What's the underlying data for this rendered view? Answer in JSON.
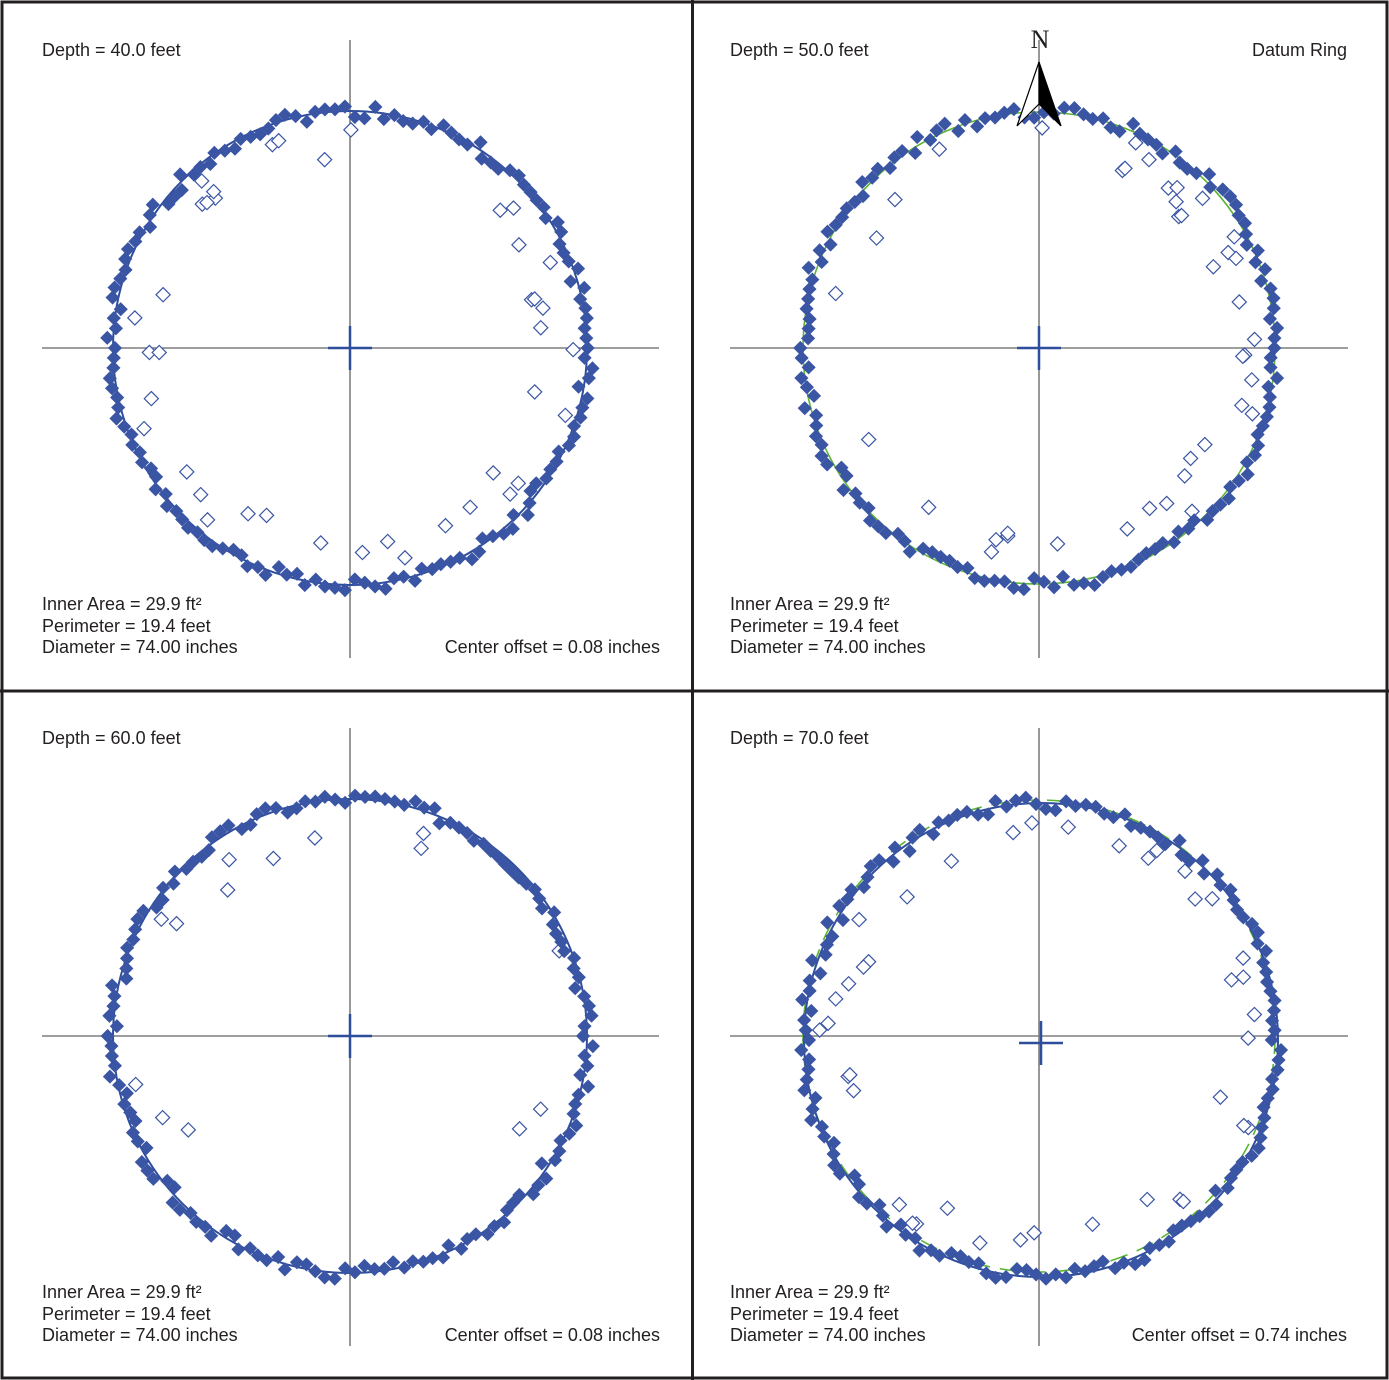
{
  "colors": {
    "fit_circle": "#2e4d9c",
    "datum_ring": "#5bb531",
    "filled_marker": "#3a55a4",
    "open_marker": "#3a55a4",
    "axis": "#7f7f7f",
    "frame": "#231f20",
    "north_arrow": "#000000"
  },
  "north_label": "N",
  "datum_label": "Datum Ring",
  "chart_data": [
    {
      "type": "scatter",
      "depth_label": "Depth = 40.0 feet",
      "area_label": "Inner Area = 29.9 ft²",
      "perimeter_label": "Perimeter = 19.4 feet",
      "diameter_label": "Diameter = 74.00 inches",
      "offset_label": "Center offset = 0.08 inches",
      "depth_ft": 40.0,
      "inner_area_ft2": 29.9,
      "perimeter_ft": 19.4,
      "diameter_in": 74.0,
      "center_offset_in": 0.08,
      "fit_circle": true,
      "datum_ring": false,
      "north_arrow": false,
      "filled_points": [],
      "open_points": []
    },
    {
      "type": "scatter",
      "depth_label": "Depth = 50.0 feet",
      "area_label": "Inner Area = 29.9 ft²",
      "perimeter_label": "Perimeter = 19.4 feet",
      "diameter_label": "Diameter = 74.00 inches",
      "offset_label": "",
      "depth_ft": 50.0,
      "inner_area_ft2": 29.9,
      "perimeter_ft": 19.4,
      "diameter_in": 74.0,
      "fit_circle": false,
      "datum_ring": true,
      "north_arrow": true,
      "filled_points": [],
      "open_points": []
    },
    {
      "type": "scatter",
      "depth_label": "Depth = 60.0 feet",
      "area_label": "Inner Area = 29.9 ft²",
      "perimeter_label": "Perimeter = 19.4 feet",
      "diameter_label": "Diameter = 74.00 inches",
      "offset_label": "Center offset = 0.08 inches",
      "depth_ft": 60.0,
      "inner_area_ft2": 29.9,
      "perimeter_ft": 19.4,
      "diameter_in": 74.0,
      "center_offset_in": 0.08,
      "fit_circle": true,
      "datum_ring": false,
      "north_arrow": false,
      "filled_points": [],
      "open_points": []
    },
    {
      "type": "scatter",
      "depth_label": "Depth = 70.0 feet",
      "area_label": "Inner Area = 29.9 ft²",
      "perimeter_label": "Perimeter = 19.4 feet",
      "diameter_label": "Diameter = 74.00 inches",
      "offset_label": "Center offset = 0.74 inches",
      "depth_ft": 70.0,
      "inner_area_ft2": 29.9,
      "perimeter_ft": 19.4,
      "diameter_in": 74.0,
      "center_offset_in": 0.74,
      "fit_circle": true,
      "datum_ring": true,
      "north_arrow": false,
      "filled_points": [],
      "open_points": []
    }
  ]
}
